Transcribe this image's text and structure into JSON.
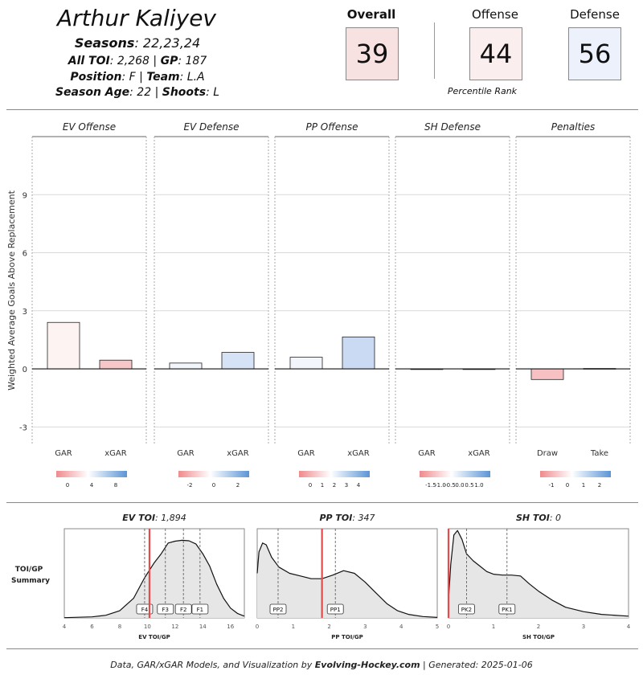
{
  "player": {
    "name": "Arthur Kaliyev",
    "seasons_label": "Seasons",
    "seasons": ": 22,23,24",
    "toi_label": "All TOI",
    "toi": ": 2,268 | ",
    "gp_label": "GP",
    "gp": ": 187",
    "position_label": "Position",
    "position": ": F | ",
    "team_label": "Team",
    "team": ": L.A",
    "age_label": "Season Age",
    "age": ": 22 | ",
    "shoots_label": "Shoots",
    "shoots": ": L"
  },
  "ranks": {
    "overall_label": "Overall",
    "overall": "39",
    "overall_color": "#f8e1e1",
    "offense_label": "Offense",
    "offense": "44",
    "offense_color": "#fbeeee",
    "defense_label": "Defense",
    "defense": "56",
    "defense_color": "#ecf1fb",
    "caption": "Percentile Rank"
  },
  "chart_data": [
    {
      "type": "bar",
      "ylabel": "Weighted Average Goals Above Replacement",
      "ylim": [
        -3.9,
        12
      ],
      "yticks": [
        -3,
        0,
        3,
        6,
        9
      ],
      "grid": true,
      "panels": [
        {
          "title": "EV Offense",
          "categories": [
            "GAR",
            "xGAR"
          ],
          "values": [
            2.4,
            0.45
          ],
          "colors": [
            "#fdf3f3",
            "#f6c6c8"
          ],
          "scale": {
            "ticks": [
              "0",
              "4",
              "8"
            ]
          }
        },
        {
          "title": "EV Defense",
          "categories": [
            "GAR",
            "xGAR"
          ],
          "values": [
            0.3,
            0.85
          ],
          "colors": [
            "#f2f6fc",
            "#d6e2f5"
          ],
          "scale": {
            "ticks": [
              "-2",
              "0",
              "2"
            ]
          }
        },
        {
          "title": "PP Offense",
          "categories": [
            "GAR",
            "xGAR"
          ],
          "values": [
            0.6,
            1.65
          ],
          "colors": [
            "#f2f6fc",
            "#c9daf2"
          ],
          "scale": {
            "ticks": [
              "0",
              "1",
              "2",
              "3",
              "4"
            ]
          }
        },
        {
          "title": "SH Defense",
          "categories": [
            "GAR",
            "xGAR"
          ],
          "values": [
            0.0,
            0.0
          ],
          "colors": [
            "#ffffff",
            "#ffffff"
          ],
          "scale": {
            "ticks": [
              "-1.5",
              "-1.0",
              "-0.5",
              "0.0",
              "0.5",
              "1.0"
            ]
          }
        },
        {
          "title": "Penalties",
          "categories": [
            "Draw",
            "Take"
          ],
          "values": [
            -0.55,
            0.02
          ],
          "colors": [
            "#f7c1c3",
            "#f6f6f6"
          ],
          "scale": {
            "ticks": [
              "-1",
              "0",
              "1",
              "2"
            ]
          }
        }
      ]
    },
    {
      "type": "area",
      "row_label": [
        "TOI/GP",
        "Summary"
      ],
      "panels": [
        {
          "title_bold": "EV TOI",
          "title_val": ": 1,894",
          "xlabel": "EV TOI/GP",
          "xlim": [
            4,
            17
          ],
          "xticks": [
            4,
            6,
            8,
            10,
            12,
            14,
            16
          ],
          "player_value": 10.15,
          "markers": [
            {
              "label": "F4",
              "x": 9.8
            },
            {
              "label": "F3",
              "x": 11.3
            },
            {
              "label": "F2",
              "x": 12.6
            },
            {
              "label": "F1",
              "x": 13.8
            }
          ],
          "density": [
            [
              4,
              0.3
            ],
            [
              6,
              1.2
            ],
            [
              7,
              3
            ],
            [
              8,
              8
            ],
            [
              9,
              22
            ],
            [
              9.8,
              45
            ],
            [
              10.5,
              62
            ],
            [
              11,
              72
            ],
            [
              11.5,
              84
            ],
            [
              12,
              86
            ],
            [
              12.5,
              87
            ],
            [
              13,
              86.5
            ],
            [
              13.5,
              83
            ],
            [
              14,
              72
            ],
            [
              14.5,
              58
            ],
            [
              15,
              38
            ],
            [
              15.5,
              22
            ],
            [
              16,
              11
            ],
            [
              16.5,
              5
            ],
            [
              17,
              2
            ]
          ]
        },
        {
          "title_bold": "PP TOI",
          "title_val": ": 347",
          "xlabel": "PP TOI/GP",
          "xlim": [
            0,
            5
          ],
          "xticks": [
            0,
            1,
            2,
            3,
            4,
            5
          ],
          "player_value": 1.8,
          "markers": [
            {
              "label": "PP2",
              "x": 0.58
            },
            {
              "label": "PP1",
              "x": 2.17
            }
          ],
          "density": [
            [
              0,
              50
            ],
            [
              0.05,
              74
            ],
            [
              0.15,
              84
            ],
            [
              0.25,
              82
            ],
            [
              0.4,
              68
            ],
            [
              0.6,
              57
            ],
            [
              0.9,
              50
            ],
            [
              1.2,
              47
            ],
            [
              1.5,
              44
            ],
            [
              1.8,
              44
            ],
            [
              2.1,
              48
            ],
            [
              2.4,
              53
            ],
            [
              2.7,
              50
            ],
            [
              3,
              40
            ],
            [
              3.3,
              28
            ],
            [
              3.6,
              16
            ],
            [
              3.9,
              8
            ],
            [
              4.2,
              4
            ],
            [
              4.6,
              1.5
            ],
            [
              5,
              0.5
            ]
          ]
        },
        {
          "title_bold": "SH TOI",
          "title_val": ": 0",
          "xlabel": "SH TOI/GP",
          "xlim": [
            0,
            4
          ],
          "xticks": [
            0,
            1,
            2,
            3,
            4
          ],
          "player_value": 0,
          "markers": [
            {
              "label": "PK2",
              "x": 0.4
            },
            {
              "label": "PK1",
              "x": 1.3
            }
          ],
          "density": [
            [
              0,
              20
            ],
            [
              0.05,
              60
            ],
            [
              0.12,
              93
            ],
            [
              0.2,
              98
            ],
            [
              0.3,
              88
            ],
            [
              0.4,
              72
            ],
            [
              0.55,
              64
            ],
            [
              0.7,
              58
            ],
            [
              0.85,
              52
            ],
            [
              1,
              49
            ],
            [
              1.2,
              48
            ],
            [
              1.4,
              48
            ],
            [
              1.6,
              47
            ],
            [
              1.8,
              38
            ],
            [
              2,
              30
            ],
            [
              2.3,
              20
            ],
            [
              2.6,
              12
            ],
            [
              3,
              7
            ],
            [
              3.4,
              4
            ],
            [
              4,
              2
            ]
          ]
        }
      ]
    }
  ],
  "footer": {
    "prefix": "Data, GAR/xGAR Models, and Visualization by ",
    "brand": "Evolving-Hockey.com",
    "suffix": " | Generated: 2025-01-06"
  }
}
